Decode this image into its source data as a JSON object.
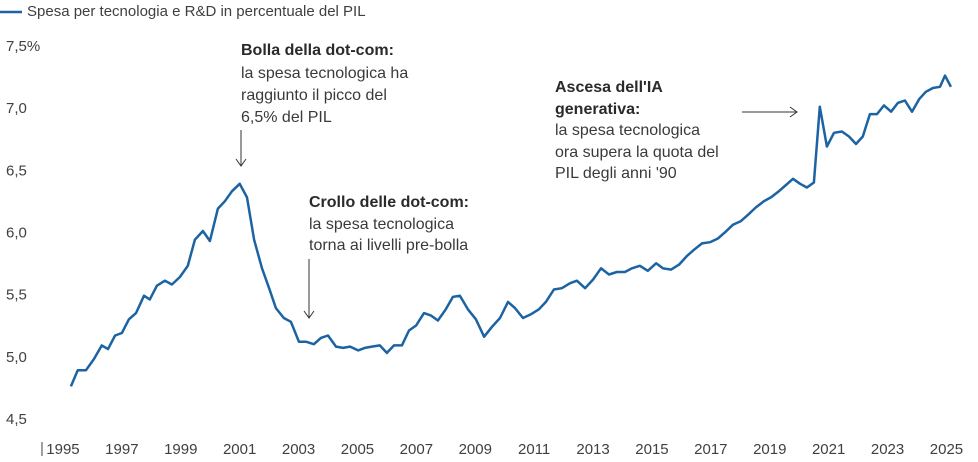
{
  "chart_data": {
    "type": "line",
    "legend": "top-left",
    "series": [
      {
        "name": "Spesa per tecnologia e R&D in percentuale del PIL",
        "color": "#1b63a3",
        "values": [
          4.77,
          4.9,
          4.9,
          4.99,
          5.1,
          5.07,
          5.18,
          5.2,
          5.31,
          5.36,
          5.5,
          5.47,
          5.58,
          5.62,
          5.59,
          5.65,
          5.74,
          5.95,
          6.02,
          5.94,
          6.2,
          6.26,
          6.34,
          6.4,
          6.29,
          5.95,
          5.72,
          5.56,
          5.4,
          5.32,
          5.29,
          5.13,
          5.13,
          5.11,
          5.16,
          5.18,
          5.09,
          5.08,
          5.09,
          5.06,
          5.08,
          5.09,
          5.1,
          5.04,
          5.1,
          5.1,
          5.22,
          5.26,
          5.36,
          5.34,
          5.3,
          5.39,
          5.49,
          5.5,
          5.39,
          5.31,
          5.17,
          5.25,
          5.32,
          5.45,
          5.4,
          5.32,
          5.35,
          5.39,
          5.45,
          5.55,
          5.56,
          5.6,
          5.62,
          5.56,
          5.63,
          5.72,
          5.67,
          5.69,
          5.69,
          5.72,
          5.74,
          5.7,
          5.76,
          5.72,
          5.71,
          5.75,
          5.82,
          5.87,
          5.92,
          5.93,
          5.96,
          6.01,
          6.07,
          6.1,
          6.15,
          6.21,
          6.26,
          6.29,
          6.34,
          6.39,
          6.44,
          6.4,
          6.37,
          6.41,
          7.02,
          6.7,
          6.81,
          6.82,
          6.78,
          6.72,
          6.78,
          6.96,
          6.96,
          7.03,
          6.98,
          7.05,
          7.07,
          6.98,
          7.08,
          7.14,
          7.17,
          7.18,
          7.27,
          7.18
        ]
      }
    ],
    "x": [
      1995.27,
      1995.5,
      1995.78,
      1996.05,
      1996.32,
      1996.53,
      1996.77,
      1997.0,
      1997.24,
      1997.48,
      1997.75,
      1997.95,
      1998.19,
      1998.46,
      1998.7,
      1998.97,
      1999.24,
      1999.48,
      1999.75,
      1999.99,
      2000.26,
      2000.5,
      2000.74,
      2001.0,
      2001.25,
      2001.49,
      2001.76,
      2002.0,
      2002.23,
      2002.5,
      2002.74,
      2003.01,
      2003.25,
      2003.52,
      2003.76,
      2004.0,
      2004.27,
      2004.51,
      2004.75,
      2005.02,
      2005.25,
      2005.49,
      2005.76,
      2006.0,
      2006.24,
      2006.51,
      2006.75,
      2006.99,
      2007.26,
      2007.5,
      2007.73,
      2008.0,
      2008.24,
      2008.48,
      2008.75,
      2009.02,
      2009.3,
      2009.57,
      2009.84,
      2010.11,
      2010.35,
      2010.62,
      2010.89,
      2011.16,
      2011.4,
      2011.67,
      2011.94,
      2012.22,
      2012.45,
      2012.73,
      2013.0,
      2013.27,
      2013.54,
      2013.81,
      2014.08,
      2014.32,
      2014.59,
      2014.86,
      2015.14,
      2015.37,
      2015.65,
      2015.92,
      2016.19,
      2016.43,
      2016.7,
      2016.97,
      2017.24,
      2017.48,
      2017.75,
      2018.02,
      2018.26,
      2018.53,
      2018.8,
      2019.04,
      2019.31,
      2019.55,
      2019.79,
      2020.03,
      2020.26,
      2020.5,
      2020.7,
      2020.94,
      2021.18,
      2021.45,
      2021.69,
      2021.93,
      2022.16,
      2022.4,
      2022.64,
      2022.88,
      2023.12,
      2023.35,
      2023.59,
      2023.83,
      2024.07,
      2024.3,
      2024.54,
      2024.78,
      2024.95,
      2025.15
    ],
    "xlim": [
      1994.22,
      2025.46
    ],
    "xticks": [
      1995,
      1997,
      1999,
      2001,
      2003,
      2005,
      2007,
      2009,
      2011,
      2013,
      2015,
      2017,
      2019,
      2021,
      2023,
      2025
    ],
    "ylim": [
      4.5,
      7.5
    ],
    "yticks": [
      {
        "value": 7.5,
        "label": "7,5%"
      },
      {
        "value": 7.0,
        "label": "7,0"
      },
      {
        "value": 6.5,
        "label": "6,5"
      },
      {
        "value": 6.0,
        "label": "6,0"
      },
      {
        "value": 5.5,
        "label": "5,5"
      },
      {
        "value": 5.0,
        "label": "5,0"
      },
      {
        "value": 4.5,
        "label": "4,5"
      }
    ],
    "grid": false,
    "annotations": [
      {
        "title": [
          "Bolla della dot-com:"
        ],
        "lines": [
          "la spesa tecnologica ha",
          "raggiunto il picco del",
          "6,5% del PIL"
        ]
      },
      {
        "title": [
          "Crollo delle dot-com:"
        ],
        "lines": [
          "la spesa tecnologica",
          "torna ai livelli pre-bolla"
        ]
      },
      {
        "title": [
          "Ascesa dell'IA",
          "generativa:"
        ],
        "lines": [
          "la spesa tecnologica",
          "ora supera la quota del",
          "PIL degli anni '90"
        ]
      }
    ]
  }
}
